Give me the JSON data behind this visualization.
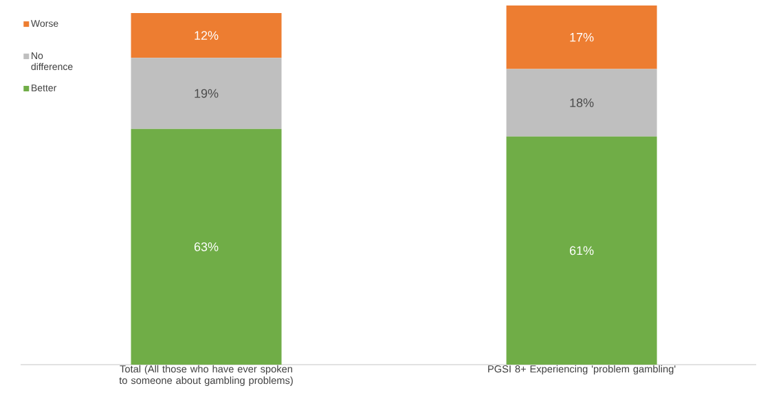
{
  "chart_data": {
    "type": "bar",
    "stacked": true,
    "legend": "left",
    "categories": [
      "Total (All those who have ever spoken to someone about gambling problems)",
      "PGSI 8+ Experiencing 'problem gambling'"
    ],
    "series": [
      {
        "name": "Better",
        "color": "#70ad47",
        "values": [
          63,
          61
        ],
        "value_labels": [
          "63%",
          "61%"
        ]
      },
      {
        "name": "No difference",
        "color": "#bfbfbf",
        "values": [
          19,
          18
        ],
        "value_labels": [
          "19%",
          "18%"
        ]
      },
      {
        "name": "Worse",
        "color": "#ed7d31",
        "values": [
          12,
          17
        ],
        "value_labels": [
          "12%",
          "17%"
        ]
      }
    ]
  }
}
